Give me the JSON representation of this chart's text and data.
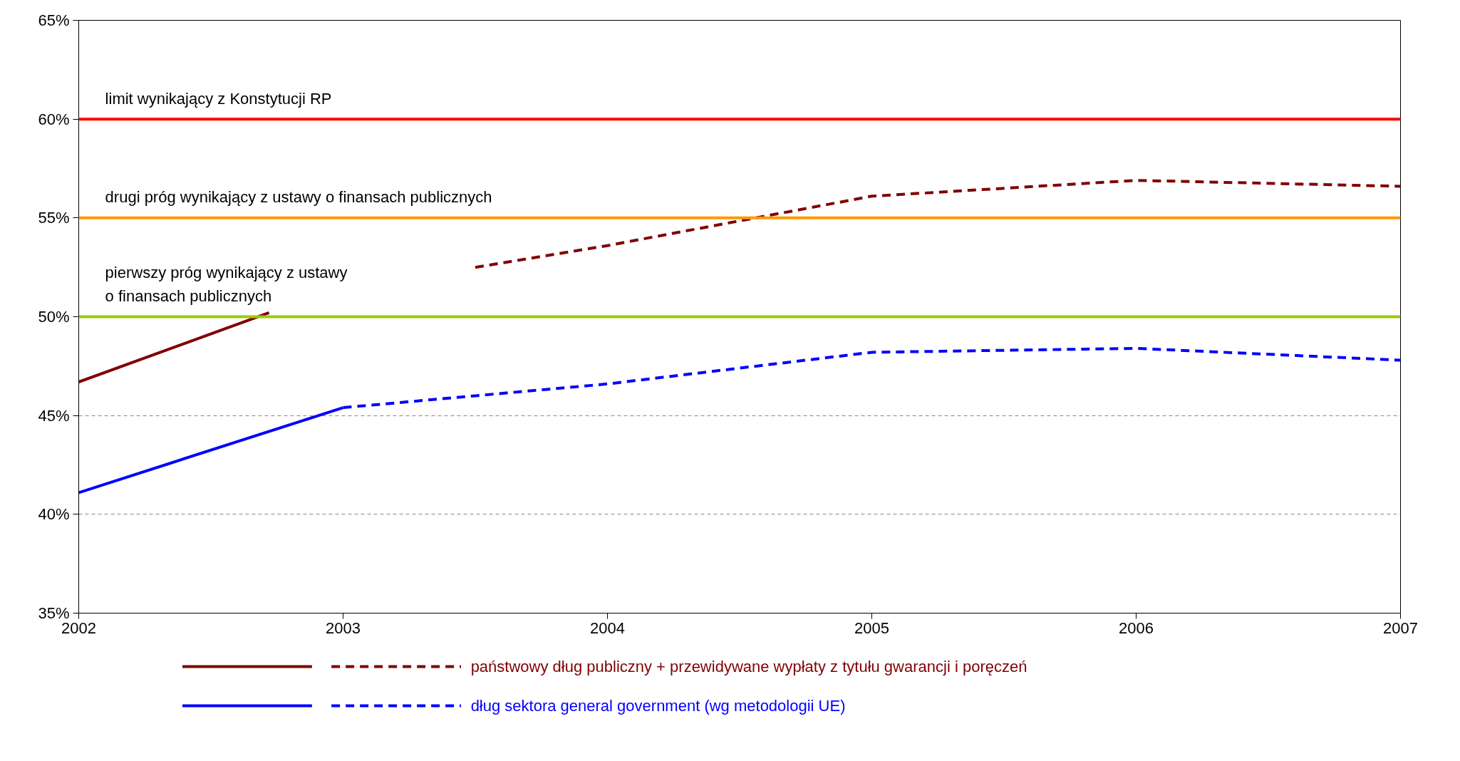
{
  "chart_data": {
    "type": "line",
    "xlim": [
      2002,
      2007
    ],
    "ylim": [
      35,
      65
    ],
    "xticks": [
      2002,
      2003,
      2004,
      2005,
      2006,
      2007
    ],
    "yticks": [
      {
        "value": 35,
        "label": "35%"
      },
      {
        "value": 40,
        "label": "40%"
      },
      {
        "value": 45,
        "label": "45%"
      },
      {
        "value": 50,
        "label": "50%"
      },
      {
        "value": 55,
        "label": "55%"
      },
      {
        "value": 60,
        "label": "60%"
      },
      {
        "value": 65,
        "label": "65%"
      }
    ],
    "grid": "y",
    "legend": "bottom",
    "marker": "none",
    "series": [
      {
        "color": "#800000",
        "line_style": "solid",
        "x": [
          2002,
          2002.72
        ],
        "values": [
          46.7,
          50.2
        ]
      },
      {
        "name": "państwowy dług publiczny + przewidywane wypłaty z tytułu gwarancji i poręczeń",
        "color": "#800000",
        "line_style": "dashed",
        "x": [
          2003.5,
          2004,
          2005,
          2006,
          2007
        ],
        "values": [
          52.5,
          53.6,
          56.1,
          56.9,
          56.6
        ]
      },
      {
        "color": "#0000ff",
        "line_style": "solid",
        "x": [
          2002,
          2003
        ],
        "values": [
          41.1,
          45.4
        ]
      },
      {
        "name": "dług sektora general government (wg metodologii UE)",
        "color": "#0000ff",
        "line_style": "dashed",
        "x": [
          2003,
          2004,
          2005,
          2006,
          2007
        ],
        "values": [
          45.4,
          46.6,
          48.2,
          48.4,
          47.8
        ]
      }
    ],
    "ref_lines": [
      {
        "axis": "y",
        "value": 60,
        "label": "limit wynikający z Konstytucji RP",
        "color": "#ff0000"
      },
      {
        "axis": "y",
        "value": 55,
        "label": "drugi próg wynikający z ustawy o finansach publicznych",
        "color": "#ff9900"
      },
      {
        "axis": "y",
        "value": 50,
        "label": "pierwszy próg wynikający z ustawy\no finansach publicznych",
        "color": "#99cc00"
      }
    ]
  }
}
